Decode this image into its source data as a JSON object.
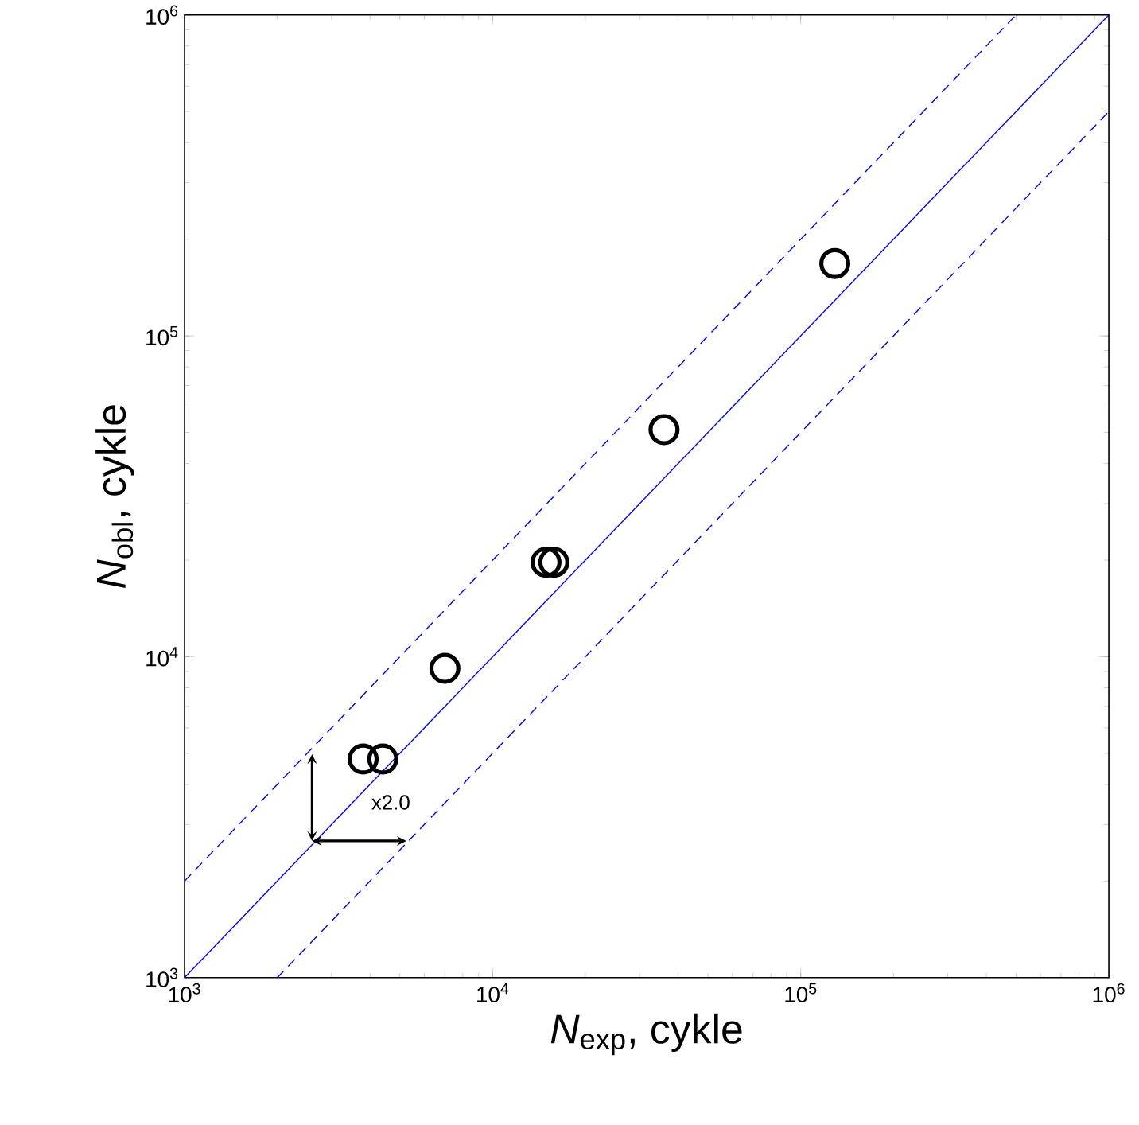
{
  "chart_data": {
    "type": "scatter",
    "xlabel": "*N*$_{exp}$, cykle",
    "ylabel": "*N*$_{obl}$, cykle",
    "log": "xy",
    "xlim": [
      1000,
      1000000
    ],
    "ylim": [
      1000,
      1000000
    ],
    "xticks": [
      {
        "value": 1000,
        "label": "10$^{3}$"
      },
      {
        "value": 10000,
        "label": "10$^{4}$"
      },
      {
        "value": 100000,
        "label": "10$^{5}$"
      },
      {
        "value": 1000000,
        "label": "10$^{6}$"
      }
    ],
    "yticks": [
      {
        "value": 1000,
        "label": "10$^{3}$"
      },
      {
        "value": 10000,
        "label": "10$^{4}$"
      },
      {
        "value": 100000,
        "label": "10$^{5}$"
      },
      {
        "value": 1000000,
        "label": "10$^{6}$"
      }
    ],
    "series": [
      {
        "color": "#000000",
        "marker": "circle",
        "x": [
          3800,
          4400,
          7000,
          14900,
          15800,
          36000,
          129000
        ],
        "values": [
          4800,
          4800,
          9200,
          19700,
          19700,
          51000,
          168000
        ]
      },
      {
        "type": "line",
        "color": "#0000ff",
        "line_style": "solid",
        "marker": "none",
        "x": [
          1000,
          1000000
        ],
        "values": [
          1000,
          1000000
        ]
      },
      {
        "type": "line",
        "color": "#0000ff",
        "line_style": "dashed",
        "marker": "none",
        "x": [
          1000,
          500000
        ],
        "values": [
          2000,
          1000000
        ]
      },
      {
        "type": "line",
        "color": "#0000ff",
        "line_style": "dashed",
        "marker": "none",
        "x": [
          2000,
          1000000
        ],
        "values": [
          1000,
          500000
        ]
      }
    ],
    "annotations": [
      "x2.0"
    ]
  }
}
